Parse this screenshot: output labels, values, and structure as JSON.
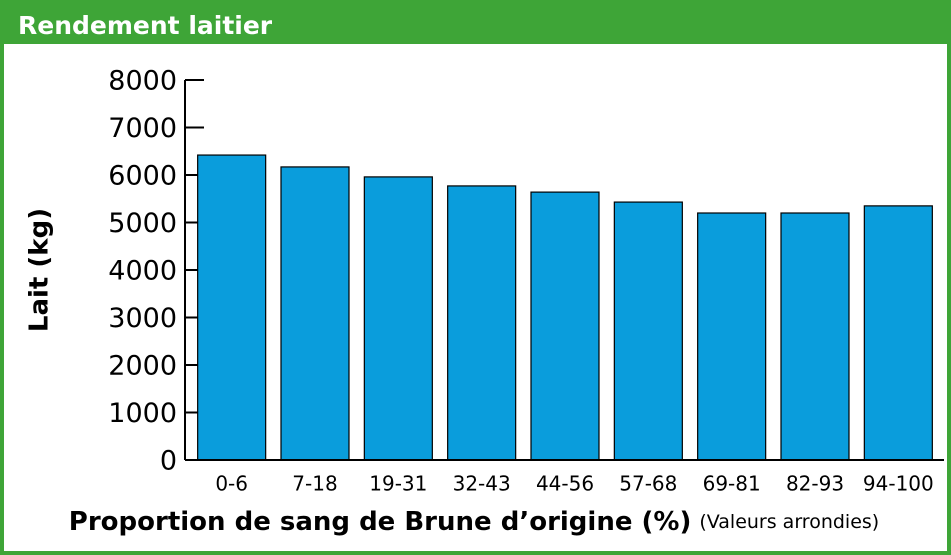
{
  "header": {
    "title": "Rendement laitier"
  },
  "chart_data": {
    "type": "bar",
    "categories": [
      "0-6",
      "7-18",
      "19-31",
      "32-43",
      "44-56",
      "57-68",
      "69-81",
      "82-93",
      "94-100"
    ],
    "values": [
      6420,
      6170,
      5960,
      5770,
      5640,
      5430,
      5200,
      5200,
      5350
    ],
    "color": "#0a9ddc",
    "ylabel": "Lait (kg)",
    "xlabel": "Proportion de sang de Brune d’origine (%)",
    "xlabel_note": "(Valeurs arrondies)",
    "ylim": [
      0,
      8000
    ],
    "yticks": [
      0,
      1000,
      2000,
      3000,
      4000,
      5000,
      6000,
      7000,
      8000
    ]
  }
}
